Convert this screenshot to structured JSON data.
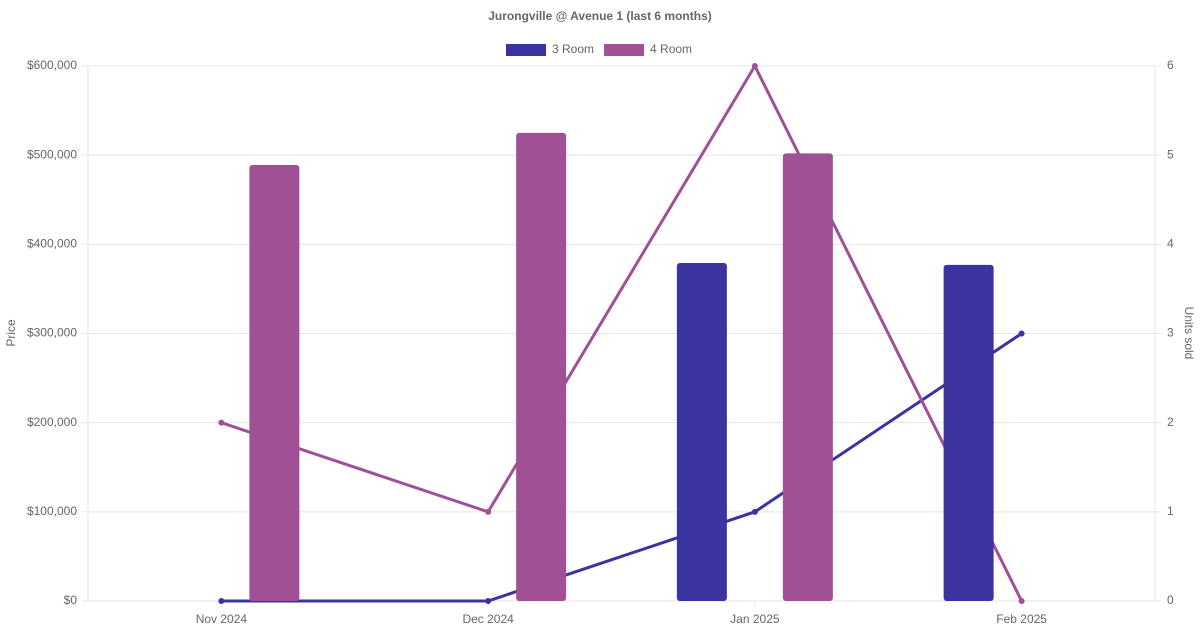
{
  "chart_data": {
    "type": "bar",
    "title": "Jurongville @ Avenue 1 (last 6 months)",
    "categories": [
      "Nov 2024",
      "Dec 2024",
      "Jan 2025",
      "Feb 2025"
    ],
    "series": [
      {
        "name": "3 Room",
        "color": "#3b33a0",
        "values": [
          null,
          null,
          379000,
          377000
        ],
        "units_sold": [
          0,
          0,
          1,
          3
        ]
      },
      {
        "name": "4 Room",
        "color": "#a05196",
        "values": [
          489000,
          525000,
          502000,
          null
        ],
        "units_sold": [
          2,
          1,
          6,
          0
        ]
      }
    ],
    "y_label": "Price",
    "y2_label": "Units sold",
    "ylim": [
      0,
      600000
    ],
    "yticks": [
      {
        "value": 0,
        "label": "$0"
      },
      {
        "value": 100000,
        "label": "$100,000"
      },
      {
        "value": 200000,
        "label": "$200,000"
      },
      {
        "value": 300000,
        "label": "$300,000"
      },
      {
        "value": 400000,
        "label": "$400,000"
      },
      {
        "value": 500000,
        "label": "$500,000"
      },
      {
        "value": 600000,
        "label": "$600,000"
      }
    ],
    "y2lim": [
      0,
      6
    ],
    "y2ticks": [
      0,
      1,
      2,
      3,
      4,
      5,
      6
    ],
    "grid": true,
    "legend": "top"
  }
}
